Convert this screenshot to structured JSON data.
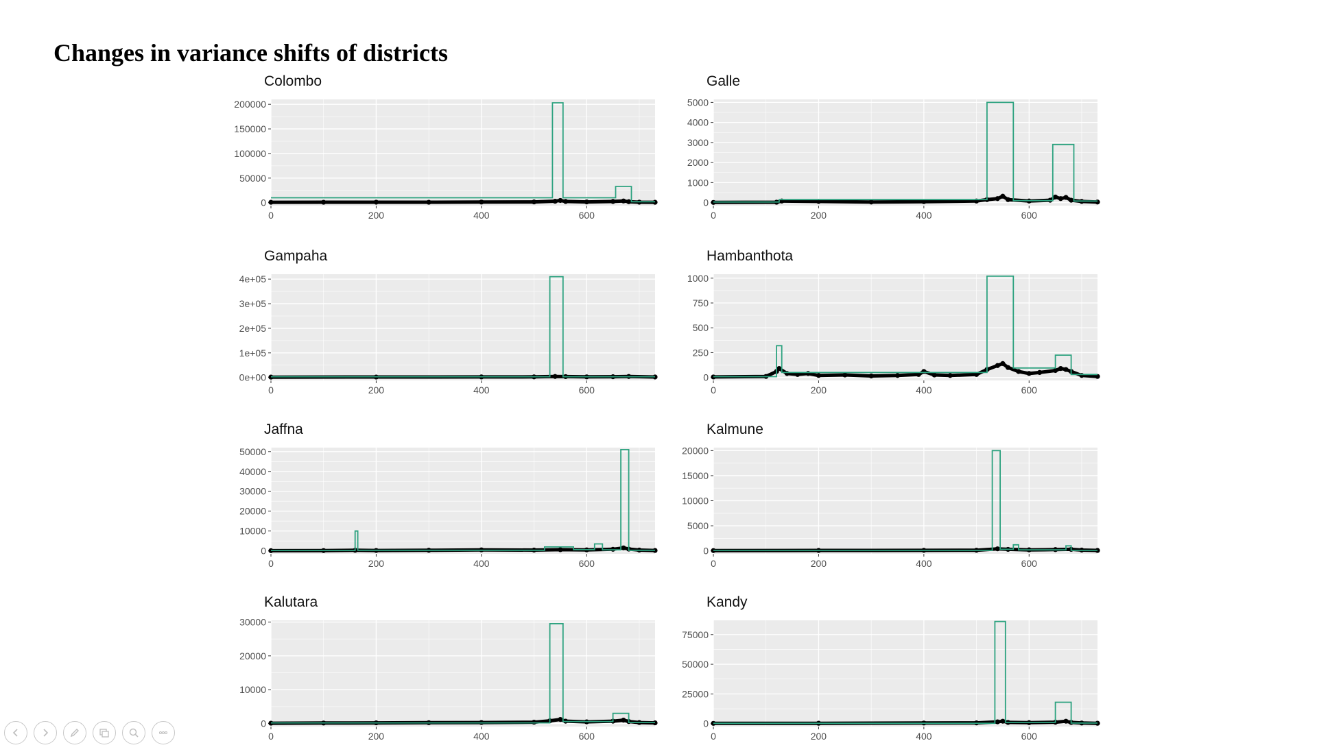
{
  "slide": {
    "title": "Changes in variance shifts of districts"
  },
  "colors": {
    "variance_line": "#2ca27f",
    "series_points": "#000000",
    "panel_bg": "#ebebeb",
    "grid": "#ffffff"
  },
  "toolbar": {
    "icons": [
      "previous-icon",
      "next-icon",
      "pen-icon",
      "slides-icon",
      "zoom-icon",
      "more-icon"
    ]
  },
  "chart_data": [
    {
      "type": "line",
      "title": "Colombo",
      "xlim": [
        0,
        730
      ],
      "ylim": [
        -6000,
        210000
      ],
      "xticks": [
        0,
        200,
        400,
        600
      ],
      "yticks": [
        0,
        50000,
        100000,
        150000,
        200000
      ],
      "ytick_labels": [
        "0",
        "50000",
        "100000",
        "150000",
        "200000"
      ],
      "variance_line": {
        "x": [
          0,
          535,
          535,
          555,
          555,
          655,
          655,
          685,
          685,
          730
        ],
        "y": [
          10000,
          10000,
          203000,
          203000,
          10000,
          10000,
          33000,
          33000,
          2000,
          2000
        ]
      },
      "points": {
        "x": [
          0,
          100,
          200,
          300,
          400,
          500,
          540,
          550,
          560,
          600,
          650,
          670,
          680,
          700,
          730
        ],
        "y": [
          800,
          900,
          1000,
          900,
          1200,
          1500,
          3000,
          4500,
          2500,
          1500,
          2500,
          3500,
          2000,
          1000,
          800
        ]
      }
    },
    {
      "type": "line",
      "title": "Galle",
      "xlim": [
        0,
        730
      ],
      "ylim": [
        -150,
        5150
      ],
      "xticks": [
        0,
        200,
        400,
        600
      ],
      "yticks": [
        0,
        1000,
        2000,
        3000,
        4000,
        5000
      ],
      "ytick_labels": [
        "0",
        "1000",
        "2000",
        "3000",
        "4000",
        "5000"
      ],
      "variance_line": {
        "x": [
          0,
          125,
          125,
          520,
          520,
          570,
          570,
          645,
          645,
          685,
          685,
          730
        ],
        "y": [
          30,
          30,
          150,
          150,
          5000,
          5000,
          100,
          100,
          2900,
          2900,
          80,
          80
        ]
      },
      "points": {
        "x": [
          0,
          120,
          130,
          200,
          300,
          400,
          500,
          520,
          540,
          550,
          560,
          600,
          640,
          650,
          660,
          670,
          680,
          700,
          730
        ],
        "y": [
          10,
          20,
          80,
          60,
          30,
          50,
          80,
          150,
          200,
          320,
          150,
          80,
          120,
          280,
          200,
          260,
          120,
          60,
          30
        ]
      }
    },
    {
      "type": "line",
      "title": "Gampaha",
      "xlim": [
        0,
        730
      ],
      "ylim": [
        -12000,
        420000
      ],
      "xticks": [
        0,
        200,
        400,
        600
      ],
      "yticks": [
        0,
        100000,
        200000,
        300000,
        400000
      ],
      "ytick_labels": [
        "0e+00",
        "1e+05",
        "2e+05",
        "3e+05",
        "4e+05"
      ],
      "variance_line": {
        "x": [
          0,
          530,
          530,
          555,
          555,
          730
        ],
        "y": [
          3000,
          3000,
          410000,
          410000,
          3000,
          3000
        ]
      },
      "points": {
        "x": [
          0,
          200,
          400,
          500,
          540,
          560,
          600,
          650,
          680,
          730
        ],
        "y": [
          1500,
          1800,
          2200,
          2500,
          4000,
          3500,
          2500,
          3000,
          4000,
          2000
        ]
      }
    },
    {
      "type": "line",
      "title": "Hambanthota",
      "xlim": [
        0,
        730
      ],
      "ylim": [
        -30,
        1040
      ],
      "xticks": [
        0,
        200,
        400,
        600
      ],
      "yticks": [
        0,
        250,
        500,
        750,
        1000
      ],
      "ytick_labels": [
        "0",
        "250",
        "500",
        "750",
        "1000"
      ],
      "variance_line": {
        "x": [
          0,
          120,
          120,
          130,
          130,
          520,
          520,
          570,
          570,
          650,
          650,
          680,
          680,
          730
        ],
        "y": [
          8,
          8,
          320,
          320,
          50,
          50,
          1020,
          1020,
          95,
          95,
          225,
          225,
          30,
          30
        ]
      },
      "points": {
        "x": [
          0,
          100,
          120,
          125,
          140,
          160,
          180,
          200,
          250,
          300,
          350,
          390,
          400,
          420,
          450,
          500,
          520,
          540,
          550,
          560,
          580,
          600,
          620,
          650,
          660,
          670,
          680,
          700,
          730
        ],
        "y": [
          5,
          10,
          60,
          90,
          40,
          30,
          40,
          20,
          25,
          15,
          20,
          30,
          60,
          25,
          20,
          30,
          80,
          120,
          140,
          100,
          60,
          40,
          50,
          70,
          90,
          80,
          60,
          20,
          10
        ]
      }
    },
    {
      "type": "line",
      "title": "Jaffna",
      "xlim": [
        0,
        730
      ],
      "ylim": [
        -1500,
        52000
      ],
      "xticks": [
        0,
        200,
        400,
        600
      ],
      "yticks": [
        0,
        10000,
        20000,
        30000,
        40000,
        50000
      ],
      "ytick_labels": [
        "0",
        "10000",
        "20000",
        "30000",
        "40000",
        "50000"
      ],
      "variance_line": {
        "x": [
          0,
          160,
          160,
          165,
          165,
          520,
          520,
          575,
          575,
          615,
          615,
          630,
          630,
          665,
          665,
          680,
          680,
          730
        ],
        "y": [
          200,
          200,
          10000,
          10000,
          300,
          300,
          2000,
          2000,
          600,
          600,
          3500,
          3500,
          500,
          500,
          51000,
          51000,
          300,
          300
        ]
      },
      "points": {
        "x": [
          0,
          100,
          160,
          200,
          300,
          400,
          500,
          550,
          600,
          650,
          670,
          680,
          700,
          730
        ],
        "y": [
          100,
          150,
          300,
          200,
          300,
          500,
          400,
          600,
          500,
          800,
          1500,
          900,
          400,
          200
        ]
      }
    },
    {
      "type": "line",
      "title": "Kalmune",
      "xlim": [
        0,
        730
      ],
      "ylim": [
        -600,
        20600
      ],
      "xticks": [
        0,
        200,
        400,
        600
      ],
      "yticks": [
        0,
        5000,
        10000,
        15000,
        20000
      ],
      "ytick_labels": [
        "0",
        "5000",
        "10000",
        "15000",
        "20000"
      ],
      "variance_line": {
        "x": [
          0,
          530,
          530,
          545,
          545,
          570,
          570,
          580,
          580,
          670,
          670,
          680,
          680,
          730
        ],
        "y": [
          100,
          100,
          20000,
          20000,
          300,
          300,
          1200,
          1200,
          200,
          200,
          1000,
          1000,
          100,
          100
        ]
      },
      "points": {
        "x": [
          0,
          200,
          400,
          500,
          540,
          560,
          600,
          650,
          680,
          700,
          730
        ],
        "y": [
          50,
          80,
          100,
          120,
          400,
          300,
          200,
          250,
          300,
          150,
          80
        ]
      }
    },
    {
      "type": "line",
      "title": "Kalutara",
      "xlim": [
        0,
        730
      ],
      "ylim": [
        -900,
        30500
      ],
      "xticks": [
        0,
        200,
        400,
        600
      ],
      "yticks": [
        0,
        10000,
        20000,
        30000
      ],
      "ytick_labels": [
        "0",
        "10000",
        "20000",
        "30000"
      ],
      "variance_line": {
        "x": [
          0,
          530,
          530,
          555,
          555,
          650,
          650,
          680,
          680,
          730
        ],
        "y": [
          200,
          200,
          29500,
          29500,
          600,
          600,
          3000,
          3000,
          300,
          300
        ]
      },
      "points": {
        "x": [
          0,
          100,
          200,
          300,
          400,
          500,
          530,
          550,
          560,
          600,
          650,
          670,
          680,
          700,
          730
        ],
        "y": [
          100,
          150,
          200,
          250,
          300,
          400,
          800,
          1200,
          700,
          500,
          700,
          1000,
          600,
          300,
          200
        ]
      }
    },
    {
      "type": "line",
      "title": "Kandy",
      "xlim": [
        0,
        730
      ],
      "ylim": [
        -2500,
        87000
      ],
      "xticks": [
        0,
        200,
        400,
        600
      ],
      "yticks": [
        0,
        25000,
        50000,
        75000
      ],
      "ytick_labels": [
        "0",
        "25000",
        "50000",
        "75000"
      ],
      "variance_line": {
        "x": [
          0,
          535,
          535,
          555,
          555,
          650,
          650,
          680,
          680,
          730
        ],
        "y": [
          300,
          300,
          86000,
          86000,
          1000,
          1000,
          18000,
          18000,
          500,
          500
        ]
      },
      "points": {
        "x": [
          0,
          200,
          400,
          500,
          540,
          550,
          560,
          600,
          650,
          670,
          680,
          700,
          730
        ],
        "y": [
          200,
          300,
          500,
          600,
          1500,
          2000,
          1000,
          800,
          1200,
          2000,
          1000,
          500,
          300
        ]
      }
    }
  ]
}
